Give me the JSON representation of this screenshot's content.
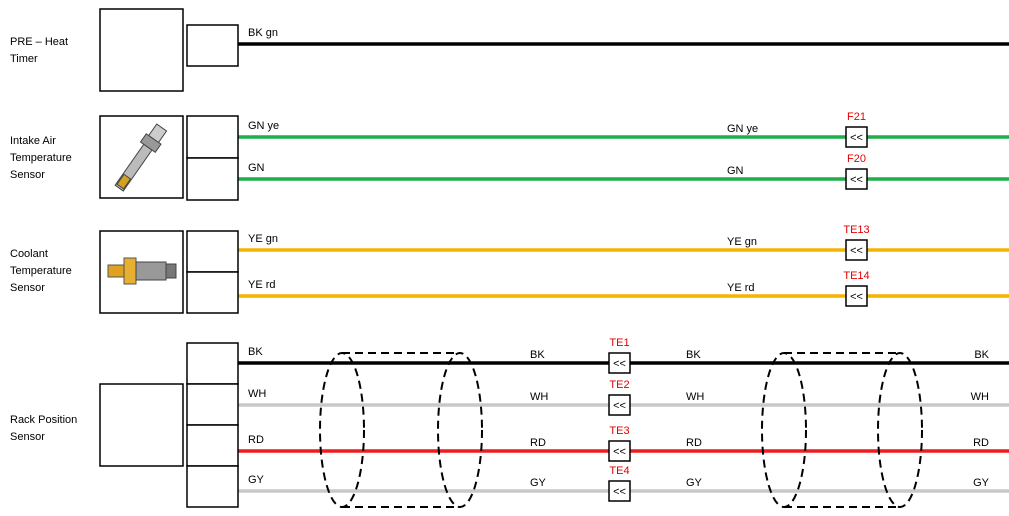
{
  "connector_symbol": "<<",
  "components": [
    {
      "name_lines": [
        "PRE – Heat",
        "Timer"
      ],
      "wires": [
        {
          "color": "#000000",
          "start_label": "BK gn"
        }
      ]
    },
    {
      "name_lines": [
        "Intake Air",
        "Temperature",
        "Sensor"
      ],
      "wires": [
        {
          "color": "#1fae4a",
          "start_label": "GN ye",
          "mid_label": "GN ye",
          "connector": "F21"
        },
        {
          "color": "#1fae4a",
          "start_label": "GN",
          "mid_label": "GN",
          "connector": "F20"
        }
      ]
    },
    {
      "name_lines": [
        "Coolant",
        "Temperature",
        "Sensor"
      ],
      "wires": [
        {
          "color": "#f5b400",
          "start_label": "YE gn",
          "mid_label": "YE gn",
          "connector": "TE13"
        },
        {
          "color": "#f5b400",
          "start_label": "YE rd",
          "mid_label": "YE rd",
          "connector": "TE14"
        }
      ]
    },
    {
      "name_lines": [
        "Rack Position",
        "Sensor"
      ],
      "wires": [
        {
          "color": "#000000",
          "start_label": "BK",
          "mid_label": "BK",
          "connector": "TE1",
          "after_label": "BK",
          "end_label": "BK"
        },
        {
          "color": "#c8c8c8",
          "start_label": "WH",
          "mid_label": "WH",
          "connector": "TE2",
          "after_label": "WH",
          "end_label": "WH"
        },
        {
          "color": "#ee1c1c",
          "start_label": "RD",
          "mid_label": "RD",
          "connector": "TE3",
          "after_label": "RD",
          "end_label": "RD"
        },
        {
          "color": "#c8c8c8",
          "start_label": "GY",
          "mid_label": "GY",
          "connector": "TE4",
          "after_label": "GY",
          "end_label": "GY"
        }
      ]
    }
  ]
}
